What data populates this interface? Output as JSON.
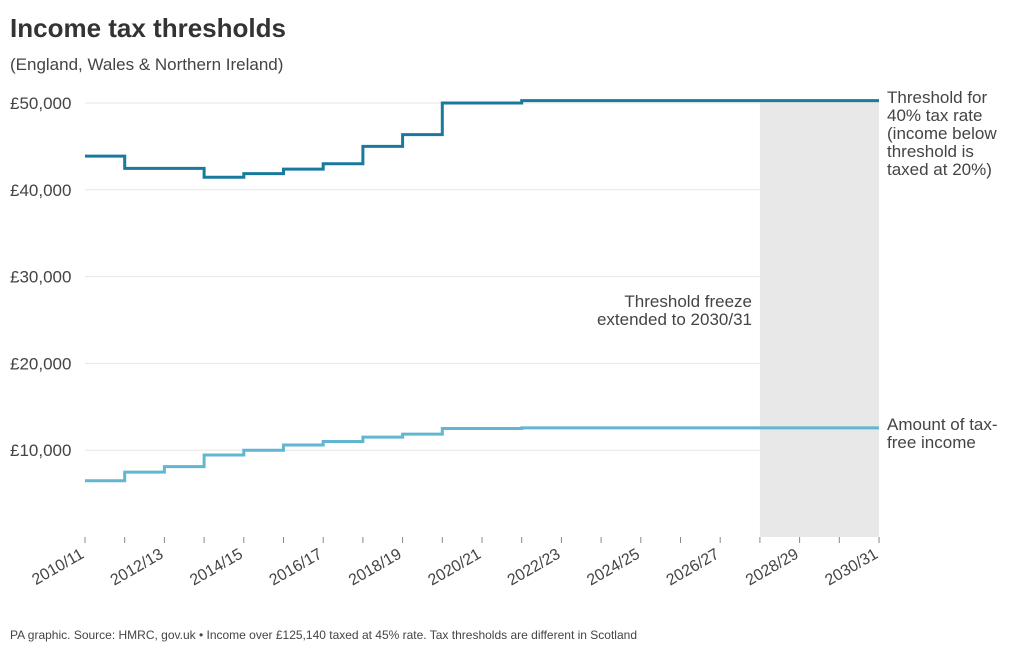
{
  "chart_data": {
    "type": "step",
    "title": "Income tax thresholds",
    "subtitle": "(England, Wales & Northern Ireland)",
    "source": "PA graphic. Source: HMRC, gov.uk • Income over £125,140 taxed at 45% rate. Tax thresholds are different in Scotland",
    "annotation": "Threshold freeze extended to 2030/31",
    "categories": [
      "2010/11",
      null,
      "2012/13",
      null,
      "2014/15",
      null,
      "2016/17",
      null,
      "2018/19",
      null,
      "2020/21",
      null,
      "2022/23",
      null,
      "2024/25",
      null,
      "2026/27",
      null,
      "2028/29",
      null,
      "2030/31"
    ],
    "series": [
      {
        "name": "Threshold for 40% tax rate (income below threshold is taxed at 20%)",
        "color": "#1a7a9e",
        "values": [
          43875,
          42475,
          42475,
          41450,
          41865,
          42385,
          43000,
          45000,
          46350,
          50000,
          50000,
          50270,
          50270,
          50270,
          50270,
          50270,
          50270,
          50270,
          50270,
          50270,
          50270
        ]
      },
      {
        "name": "Amount of tax-free income",
        "color": "#62b6d1",
        "values": [
          6475,
          7475,
          8105,
          9440,
          10000,
          10600,
          11000,
          11500,
          11850,
          12500,
          12500,
          12570,
          12570,
          12570,
          12570,
          12570,
          12570,
          12570,
          12570,
          12570,
          12570
        ]
      }
    ],
    "freeze_band": {
      "start": 17,
      "end": 20,
      "color": "#e8e8e8"
    },
    "ylim": [
      0,
      50000
    ],
    "yticks": [
      {
        "value": 10000,
        "label": "£10,000"
      },
      {
        "value": 20000,
        "label": "£20,000"
      },
      {
        "value": 30000,
        "label": "£30,000"
      },
      {
        "value": 40000,
        "label": "£40,000"
      },
      {
        "value": 50000,
        "label": "£50,000"
      }
    ],
    "grid": true
  }
}
